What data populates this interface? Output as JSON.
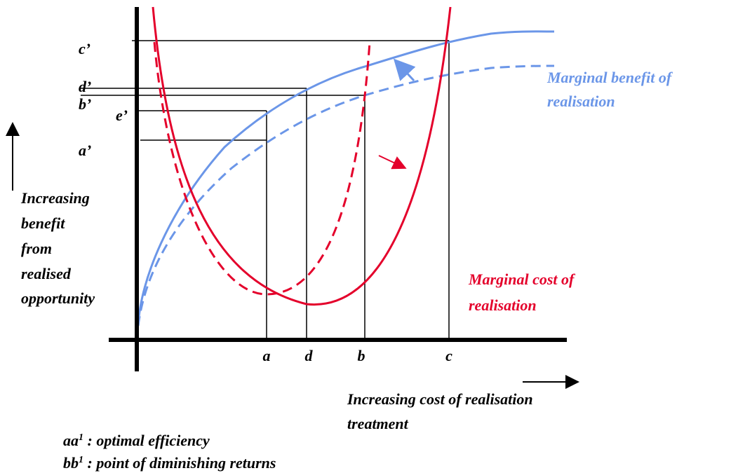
{
  "axis_labels": {
    "y_levels": [
      "c’",
      "d’",
      "b’",
      "e’",
      "a’"
    ],
    "x_levels": [
      "a",
      "d",
      "b",
      "c"
    ],
    "y_title": [
      "Increasing",
      "benefit",
      "from",
      "realised",
      "opportunity"
    ],
    "x_title": [
      "Increasing cost of realisation",
      "treatment"
    ]
  },
  "curves": {
    "benefit": [
      "Marginal benefit of",
      "realisation"
    ],
    "cost": [
      "Marginal cost of",
      "realisation"
    ]
  },
  "notes": [
    {
      "term": "aa",
      "sup": "1",
      "text": " : optimal efficiency"
    },
    {
      "term": "bb",
      "sup": "1",
      "text": " : point of diminishing returns"
    }
  ]
}
